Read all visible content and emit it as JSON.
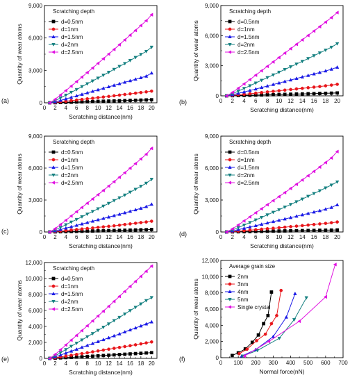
{
  "chart_data": [
    {
      "type": "line",
      "panel_label": "(a)",
      "xlabel": "Scratching distance(nm)",
      "ylabel": "Quantity of wear atoms",
      "xlim": [
        0,
        21
      ],
      "ylim": [
        0,
        9000
      ],
      "xticks": [
        0,
        2,
        4,
        6,
        8,
        10,
        12,
        14,
        16,
        18,
        20
      ],
      "yticks": [
        0,
        3000,
        6000,
        9000
      ],
      "ytick_labels": [
        "0",
        "3,000",
        "6,000",
        "9,000"
      ],
      "legend_title": "Scratching depth",
      "legend_position": "top-left",
      "x": [
        1,
        2,
        3,
        4,
        5,
        6,
        7,
        8,
        9,
        10,
        11,
        12,
        13,
        14,
        15,
        16,
        17,
        18,
        19,
        20
      ],
      "series": [
        {
          "name": "d=0.5nm",
          "color": "#000000",
          "marker": "square",
          "values": [
            0,
            10,
            25,
            40,
            55,
            70,
            85,
            100,
            115,
            130,
            145,
            160,
            175,
            190,
            205,
            220,
            235,
            250,
            265,
            280
          ]
        },
        {
          "name": "d=1nm",
          "color": "#e8161b",
          "marker": "circle",
          "values": [
            0,
            40,
            90,
            140,
            200,
            255,
            310,
            365,
            420,
            480,
            535,
            590,
            650,
            710,
            770,
            830,
            890,
            950,
            1010,
            1080
          ]
        },
        {
          "name": "d=1.5nm",
          "color": "#1a1ae6",
          "marker": "triangle-up",
          "values": [
            0,
            90,
            220,
            360,
            500,
            640,
            780,
            920,
            1060,
            1200,
            1340,
            1480,
            1620,
            1760,
            1900,
            2040,
            2180,
            2320,
            2460,
            2750
          ]
        },
        {
          "name": "d=2nm",
          "color": "#158080",
          "marker": "triangle-down",
          "values": [
            0,
            200,
            450,
            710,
            970,
            1230,
            1500,
            1760,
            2020,
            2290,
            2560,
            2830,
            3100,
            3370,
            3640,
            3920,
            4200,
            4480,
            4760,
            5150
          ]
        },
        {
          "name": "d=2.5nm",
          "color": "#e010e0",
          "marker": "triangle-left",
          "values": [
            0,
            320,
            720,
            1130,
            1540,
            1960,
            2380,
            2800,
            3220,
            3650,
            4080,
            4510,
            4940,
            5380,
            5820,
            6260,
            6700,
            7150,
            7600,
            8150
          ]
        }
      ]
    },
    {
      "type": "line",
      "panel_label": "(b)",
      "xlabel": "Scratching distance(nm)",
      "ylabel": "Quantity of wear atoms",
      "xlim": [
        0,
        21
      ],
      "ylim": [
        0,
        9000
      ],
      "xticks": [
        0,
        2,
        4,
        6,
        8,
        10,
        12,
        14,
        16,
        18,
        20
      ],
      "yticks": [
        0,
        3000,
        6000,
        9000
      ],
      "ytick_labels": [
        "0",
        "3,000",
        "6,000",
        "9,000"
      ],
      "legend_title": "Scratching depth",
      "legend_position": "top-left",
      "x": [
        1,
        2,
        3,
        4,
        5,
        6,
        7,
        8,
        9,
        10,
        11,
        12,
        13,
        14,
        15,
        16,
        17,
        18,
        19,
        20
      ],
      "series": [
        {
          "name": "d=0.5nm",
          "color": "#000000",
          "marker": "square",
          "values": [
            0,
            15,
            30,
            45,
            60,
            75,
            90,
            105,
            120,
            135,
            150,
            165,
            180,
            195,
            210,
            225,
            240,
            255,
            270,
            290
          ]
        },
        {
          "name": "d=1nm",
          "color": "#e8161b",
          "marker": "circle",
          "values": [
            0,
            45,
            100,
            155,
            210,
            270,
            330,
            390,
            450,
            510,
            570,
            630,
            690,
            750,
            810,
            870,
            930,
            1000,
            1070,
            1150
          ]
        },
        {
          "name": "d=1.5nm",
          "color": "#1a1ae6",
          "marker": "triangle-up",
          "values": [
            0,
            110,
            250,
            390,
            530,
            680,
            830,
            980,
            1130,
            1280,
            1430,
            1580,
            1730,
            1880,
            2030,
            2180,
            2330,
            2480,
            2650,
            2850
          ]
        },
        {
          "name": "d=2nm",
          "color": "#158080",
          "marker": "triangle-down",
          "values": [
            0,
            210,
            470,
            740,
            1010,
            1280,
            1550,
            1820,
            2090,
            2360,
            2630,
            2900,
            3170,
            3440,
            3720,
            4000,
            4280,
            4560,
            4850,
            5200
          ]
        },
        {
          "name": "d=2.5nm",
          "color": "#e010e0",
          "marker": "triangle-left",
          "values": [
            0,
            340,
            760,
            1190,
            1620,
            2060,
            2500,
            2940,
            3380,
            3820,
            4260,
            4700,
            5140,
            5580,
            6020,
            6460,
            6900,
            7350,
            7800,
            8300
          ]
        }
      ]
    },
    {
      "type": "line",
      "panel_label": "(c)",
      "xlabel": "Scratching distance(nm)",
      "ylabel": "Quantity of wear atoms",
      "xlim": [
        0,
        21
      ],
      "ylim": [
        0,
        9000
      ],
      "xticks": [
        0,
        2,
        4,
        6,
        8,
        10,
        12,
        14,
        16,
        18,
        20
      ],
      "yticks": [
        0,
        3000,
        6000,
        9000
      ],
      "ytick_labels": [
        "0",
        "3,000",
        "6,000",
        "9,000"
      ],
      "legend_title": "Scratching depth",
      "legend_position": "top-left",
      "x": [
        1,
        2,
        3,
        4,
        5,
        6,
        7,
        8,
        9,
        10,
        11,
        12,
        13,
        14,
        15,
        16,
        17,
        18,
        19,
        20
      ],
      "series": [
        {
          "name": "d=0.5nm",
          "color": "#000000",
          "marker": "square",
          "values": [
            0,
            10,
            22,
            34,
            46,
            58,
            70,
            82,
            94,
            106,
            118,
            130,
            142,
            154,
            166,
            178,
            190,
            202,
            214,
            230
          ]
        },
        {
          "name": "d=1nm",
          "color": "#e8161b",
          "marker": "circle",
          "values": [
            0,
            40,
            85,
            130,
            180,
            230,
            280,
            330,
            380,
            430,
            480,
            530,
            580,
            640,
            700,
            760,
            820,
            880,
            940,
            1010
          ]
        },
        {
          "name": "d=1.5nm",
          "color": "#1a1ae6",
          "marker": "triangle-up",
          "values": [
            0,
            100,
            230,
            360,
            490,
            620,
            750,
            880,
            1010,
            1140,
            1270,
            1400,
            1530,
            1660,
            1800,
            1940,
            2080,
            2220,
            2380,
            2600
          ]
        },
        {
          "name": "d=2nm",
          "color": "#158080",
          "marker": "triangle-down",
          "values": [
            0,
            190,
            430,
            680,
            930,
            1180,
            1430,
            1680,
            1930,
            2180,
            2430,
            2690,
            2950,
            3210,
            3470,
            3740,
            4010,
            4290,
            4580,
            4950
          ]
        },
        {
          "name": "d=2.5nm",
          "color": "#e010e0",
          "marker": "triangle-left",
          "values": [
            0,
            310,
            700,
            1100,
            1500,
            1900,
            2300,
            2700,
            3100,
            3500,
            3900,
            4310,
            4720,
            5140,
            5560,
            5990,
            6420,
            6860,
            7300,
            7850
          ]
        }
      ]
    },
    {
      "type": "line",
      "panel_label": "(d)",
      "xlabel": "Scratching distance(nm)",
      "ylabel": "Quantity of wear atoms",
      "xlim": [
        0,
        21
      ],
      "ylim": [
        0,
        9000
      ],
      "xticks": [
        0,
        2,
        4,
        6,
        8,
        10,
        12,
        14,
        16,
        18,
        20
      ],
      "yticks": [
        0,
        3000,
        6000,
        9000
      ],
      "ytick_labels": [
        "0",
        "3,000",
        "6,000",
        "9,000"
      ],
      "legend_title": "Scratching depth",
      "legend_position": "top-left",
      "x": [
        1,
        2,
        3,
        4,
        5,
        6,
        7,
        8,
        9,
        10,
        11,
        12,
        13,
        14,
        15,
        16,
        17,
        18,
        19,
        20
      ],
      "series": [
        {
          "name": "d=0.5nm",
          "color": "#000000",
          "marker": "square",
          "values": [
            0,
            10,
            20,
            30,
            40,
            50,
            60,
            70,
            80,
            90,
            100,
            110,
            120,
            130,
            140,
            150,
            160,
            170,
            180,
            190
          ]
        },
        {
          "name": "d=1nm",
          "color": "#e8161b",
          "marker": "circle",
          "values": [
            0,
            35,
            80,
            125,
            170,
            215,
            260,
            305,
            350,
            400,
            450,
            500,
            550,
            600,
            650,
            700,
            755,
            810,
            870,
            940
          ]
        },
        {
          "name": "d=1.5nm",
          "color": "#1a1ae6",
          "marker": "triangle-up",
          "values": [
            0,
            95,
            220,
            345,
            470,
            595,
            720,
            845,
            970,
            1095,
            1220,
            1350,
            1480,
            1610,
            1740,
            1870,
            2000,
            2140,
            2300,
            2550
          ]
        },
        {
          "name": "d=2nm",
          "color": "#158080",
          "marker": "triangle-down",
          "values": [
            0,
            180,
            410,
            650,
            890,
            1130,
            1370,
            1610,
            1850,
            2090,
            2340,
            2590,
            2840,
            3090,
            3350,
            3610,
            3870,
            4140,
            4410,
            4700
          ]
        },
        {
          "name": "d=2.5nm",
          "color": "#e010e0",
          "marker": "triangle-left",
          "values": [
            0,
            290,
            660,
            1040,
            1420,
            1800,
            2180,
            2560,
            2940,
            3320,
            3700,
            4090,
            4480,
            4880,
            5280,
            5690,
            6100,
            6520,
            6950,
            7550
          ]
        }
      ]
    },
    {
      "type": "line",
      "panel_label": "(e)",
      "xlabel": "Scratching distance(nm)",
      "ylabel": "Quantity of wear atoms",
      "xlim": [
        0,
        21
      ],
      "ylim": [
        0,
        12000
      ],
      "xticks": [
        0,
        2,
        4,
        6,
        8,
        10,
        12,
        14,
        16,
        18,
        20
      ],
      "yticks": [
        0,
        2000,
        4000,
        6000,
        8000,
        10000,
        12000
      ],
      "ytick_labels": [
        "0",
        "2,000",
        "4,000",
        "6,000",
        "8,000",
        "10,000",
        "12,000"
      ],
      "legend_title": "Scratching depth",
      "legend_position": "top-left",
      "x": [
        1,
        2,
        3,
        4,
        5,
        6,
        7,
        8,
        9,
        10,
        11,
        12,
        13,
        14,
        15,
        16,
        17,
        18,
        19,
        20
      ],
      "series": [
        {
          "name": "d=0.5nm",
          "color": "#000000",
          "marker": "square",
          "values": [
            0,
            25,
            60,
            95,
            130,
            165,
            200,
            240,
            280,
            320,
            360,
            400,
            440,
            480,
            520,
            560,
            600,
            640,
            680,
            720
          ]
        },
        {
          "name": "d=1nm",
          "color": "#e8161b",
          "marker": "circle",
          "values": [
            0,
            80,
            180,
            285,
            390,
            495,
            600,
            710,
            820,
            930,
            1040,
            1150,
            1260,
            1370,
            1480,
            1590,
            1700,
            1820,
            1940,
            2060
          ]
        },
        {
          "name": "d=1.5nm",
          "color": "#1a1ae6",
          "marker": "triangle-up",
          "values": [
            0,
            190,
            420,
            660,
            900,
            1140,
            1380,
            1620,
            1860,
            2100,
            2340,
            2580,
            2820,
            3060,
            3310,
            3560,
            3810,
            4060,
            4310,
            4560
          ]
        },
        {
          "name": "d=2nm",
          "color": "#158080",
          "marker": "triangle-down",
          "values": [
            0,
            320,
            710,
            1110,
            1510,
            1910,
            2310,
            2710,
            3110,
            3510,
            3910,
            4320,
            4730,
            5140,
            5560,
            5980,
            6400,
            6820,
            7240,
            7620
          ]
        },
        {
          "name": "d=2.5nm",
          "color": "#e010e0",
          "marker": "triangle-left",
          "values": [
            0,
            490,
            1080,
            1680,
            2280,
            2880,
            3480,
            4080,
            4690,
            5300,
            5910,
            6520,
            7140,
            7760,
            8380,
            9010,
            9640,
            10270,
            10900,
            11550
          ]
        }
      ]
    },
    {
      "type": "line",
      "panel_label": "(f)",
      "xlabel": "Normal force(nN)",
      "ylabel": "Quantity of wear atoms",
      "xlim": [
        0,
        700
      ],
      "ylim": [
        0,
        12000
      ],
      "xticks": [
        0,
        100,
        200,
        300,
        400,
        500,
        600,
        700
      ],
      "yticks": [
        0,
        2000,
        4000,
        6000,
        8000,
        10000,
        12000
      ],
      "ytick_labels": [
        "0",
        "2,000",
        "4,000",
        "6,000",
        "8,000",
        "10,000",
        "12,000"
      ],
      "legend_title": "Average grain size",
      "legend_position": "top-left",
      "series": [
        {
          "name": "2nm",
          "color": "#000000",
          "marker": "square",
          "x": [
            65,
            100,
            140,
            180,
            215,
            245,
            270,
            290
          ],
          "values": [
            280,
            600,
            1080,
            1900,
            2800,
            4200,
            5200,
            8100
          ]
        },
        {
          "name": "3nm",
          "color": "#e8161b",
          "marker": "circle",
          "x": [
            105,
            150,
            205,
            255,
            290,
            320,
            345
          ],
          "values": [
            500,
            1050,
            2100,
            2900,
            4200,
            5200,
            8300
          ]
        },
        {
          "name": "4nm",
          "color": "#1a1ae6",
          "marker": "triangle-up",
          "x": [
            120,
            200,
            300,
            375,
            425
          ],
          "values": [
            200,
            1000,
            2600,
            5000,
            7900
          ]
        },
        {
          "name": "5nm",
          "color": "#158080",
          "marker": "triangle-down",
          "x": [
            125,
            210,
            335,
            420,
            490
          ],
          "values": [
            200,
            900,
            2400,
            4700,
            7400
          ]
        },
        {
          "name": "Single crystal",
          "color": "#e010e0",
          "marker": "triangle-left",
          "x": [
            135,
            275,
            450,
            600,
            655
          ],
          "values": [
            200,
            2000,
            4500,
            7500,
            11500
          ]
        }
      ]
    }
  ]
}
